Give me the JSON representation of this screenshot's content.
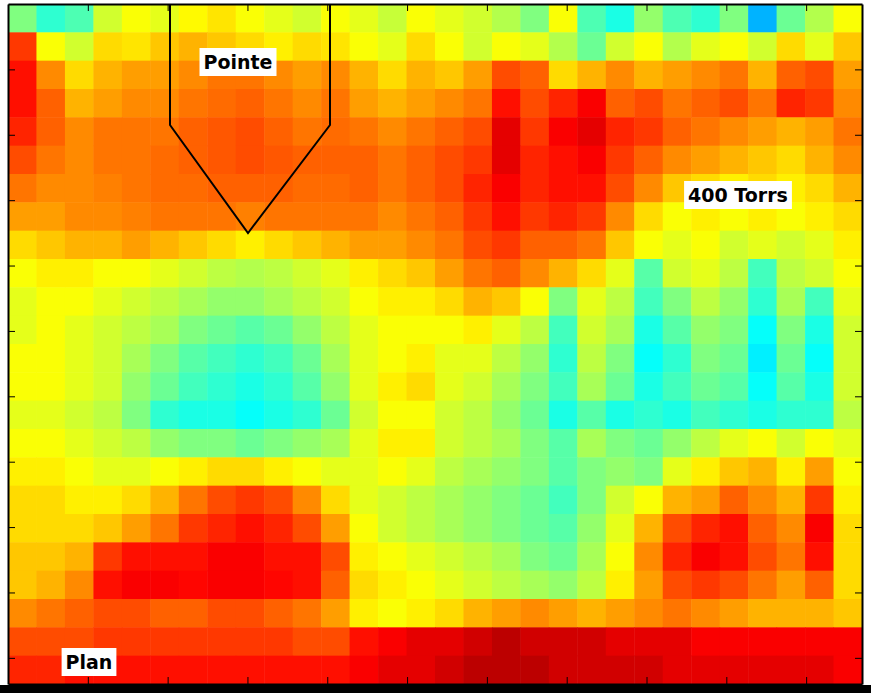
{
  "chart_data": {
    "type": "heatmap",
    "annotations": [
      "Pointe",
      "400 Torrs",
      "Plan"
    ],
    "xlim": [
      0,
      10.7
    ],
    "xticks": [
      1,
      2,
      3,
      4,
      5,
      6,
      7,
      8,
      9,
      10
    ],
    "ylim": [
      0,
      10.4
    ],
    "yticks": [
      1,
      2,
      3,
      4,
      5,
      6,
      7,
      8,
      9,
      10
    ],
    "tick_labels": false,
    "value_range": [
      0,
      1
    ],
    "cells": [
      [
        0.5,
        0.42,
        0.45,
        0.58,
        0.62,
        0.6,
        0.63,
        0.65,
        0.62,
        0.6,
        0.58,
        0.62,
        0.6,
        0.57,
        0.62,
        0.6,
        0.58,
        0.55,
        0.5,
        0.62,
        0.45,
        0.4,
        0.52,
        0.45,
        0.42,
        0.5,
        0.3,
        0.48,
        0.55,
        0.62
      ],
      [
        0.82,
        0.62,
        0.58,
        0.66,
        0.65,
        0.68,
        0.7,
        0.68,
        0.66,
        0.64,
        0.66,
        0.65,
        0.62,
        0.6,
        0.66,
        0.62,
        0.58,
        0.62,
        0.6,
        0.55,
        0.48,
        0.58,
        0.62,
        0.55,
        0.6,
        0.62,
        0.58,
        0.66,
        0.6,
        0.68
      ],
      [
        0.86,
        0.74,
        0.66,
        0.7,
        0.72,
        0.72,
        0.74,
        0.76,
        0.76,
        0.74,
        0.72,
        0.74,
        0.7,
        0.66,
        0.7,
        0.68,
        0.72,
        0.8,
        0.78,
        0.66,
        0.7,
        0.74,
        0.7,
        0.72,
        0.74,
        0.76,
        0.7,
        0.78,
        0.8,
        0.72
      ],
      [
        0.86,
        0.78,
        0.7,
        0.72,
        0.74,
        0.74,
        0.76,
        0.77,
        0.78,
        0.76,
        0.74,
        0.76,
        0.72,
        0.7,
        0.72,
        0.74,
        0.76,
        0.86,
        0.8,
        0.84,
        0.88,
        0.78,
        0.8,
        0.76,
        0.78,
        0.8,
        0.76,
        0.84,
        0.82,
        0.74
      ],
      [
        0.84,
        0.78,
        0.74,
        0.76,
        0.76,
        0.76,
        0.78,
        0.79,
        0.8,
        0.78,
        0.76,
        0.77,
        0.76,
        0.74,
        0.76,
        0.78,
        0.8,
        0.9,
        0.82,
        0.88,
        0.9,
        0.84,
        0.82,
        0.78,
        0.76,
        0.74,
        0.72,
        0.7,
        0.72,
        0.76
      ],
      [
        0.8,
        0.76,
        0.74,
        0.76,
        0.76,
        0.77,
        0.78,
        0.79,
        0.8,
        0.79,
        0.78,
        0.78,
        0.78,
        0.76,
        0.78,
        0.8,
        0.82,
        0.9,
        0.84,
        0.86,
        0.88,
        0.82,
        0.78,
        0.74,
        0.72,
        0.7,
        0.68,
        0.66,
        0.7,
        0.74
      ],
      [
        0.76,
        0.74,
        0.74,
        0.75,
        0.76,
        0.77,
        0.77,
        0.78,
        0.78,
        0.78,
        0.77,
        0.77,
        0.78,
        0.76,
        0.78,
        0.8,
        0.84,
        0.88,
        0.84,
        0.86,
        0.86,
        0.8,
        0.74,
        0.68,
        0.66,
        0.64,
        0.66,
        0.64,
        0.66,
        0.7
      ],
      [
        0.72,
        0.72,
        0.74,
        0.74,
        0.75,
        0.76,
        0.76,
        0.76,
        0.75,
        0.76,
        0.76,
        0.76,
        0.76,
        0.74,
        0.76,
        0.78,
        0.82,
        0.86,
        0.82,
        0.84,
        0.82,
        0.74,
        0.66,
        0.62,
        0.64,
        0.62,
        0.64,
        0.62,
        0.64,
        0.66
      ],
      [
        0.66,
        0.68,
        0.7,
        0.7,
        0.72,
        0.7,
        0.68,
        0.66,
        0.64,
        0.66,
        0.68,
        0.7,
        0.72,
        0.72,
        0.74,
        0.76,
        0.8,
        0.82,
        0.78,
        0.78,
        0.76,
        0.68,
        0.62,
        0.6,
        0.62,
        0.58,
        0.6,
        0.58,
        0.6,
        0.64
      ],
      [
        0.62,
        0.64,
        0.64,
        0.62,
        0.62,
        0.6,
        0.58,
        0.56,
        0.55,
        0.56,
        0.58,
        0.6,
        0.64,
        0.66,
        0.68,
        0.72,
        0.76,
        0.78,
        0.74,
        0.7,
        0.66,
        0.6,
        0.46,
        0.58,
        0.6,
        0.56,
        0.44,
        0.56,
        0.58,
        0.62
      ],
      [
        0.6,
        0.62,
        0.62,
        0.6,
        0.58,
        0.56,
        0.54,
        0.52,
        0.52,
        0.54,
        0.56,
        0.58,
        0.62,
        0.64,
        0.64,
        0.66,
        0.7,
        0.68,
        0.62,
        0.5,
        0.6,
        0.56,
        0.44,
        0.5,
        0.56,
        0.52,
        0.42,
        0.54,
        0.44,
        0.6
      ],
      [
        0.6,
        0.62,
        0.6,
        0.58,
        0.56,
        0.54,
        0.5,
        0.48,
        0.46,
        0.48,
        0.52,
        0.56,
        0.6,
        0.62,
        0.62,
        0.62,
        0.64,
        0.6,
        0.56,
        0.44,
        0.58,
        0.54,
        0.4,
        0.46,
        0.52,
        0.5,
        0.38,
        0.5,
        0.4,
        0.58
      ],
      [
        0.62,
        0.62,
        0.6,
        0.58,
        0.54,
        0.5,
        0.46,
        0.44,
        0.42,
        0.44,
        0.48,
        0.54,
        0.6,
        0.62,
        0.64,
        0.6,
        0.6,
        0.56,
        0.52,
        0.42,
        0.56,
        0.5,
        0.38,
        0.42,
        0.5,
        0.48,
        0.36,
        0.48,
        0.38,
        0.58
      ],
      [
        0.62,
        0.62,
        0.6,
        0.58,
        0.52,
        0.48,
        0.44,
        0.42,
        0.4,
        0.42,
        0.46,
        0.52,
        0.6,
        0.64,
        0.66,
        0.6,
        0.58,
        0.54,
        0.5,
        0.44,
        0.54,
        0.48,
        0.4,
        0.44,
        0.48,
        0.46,
        0.38,
        0.46,
        0.4,
        0.58
      ],
      [
        0.6,
        0.6,
        0.58,
        0.56,
        0.5,
        0.42,
        0.4,
        0.4,
        0.38,
        0.4,
        0.42,
        0.48,
        0.58,
        0.62,
        0.62,
        0.58,
        0.56,
        0.52,
        0.48,
        0.4,
        0.46,
        0.4,
        0.42,
        0.4,
        0.44,
        0.42,
        0.4,
        0.42,
        0.42,
        0.56
      ],
      [
        0.62,
        0.62,
        0.6,
        0.58,
        0.56,
        0.52,
        0.5,
        0.5,
        0.48,
        0.5,
        0.52,
        0.54,
        0.6,
        0.64,
        0.64,
        0.58,
        0.56,
        0.54,
        0.5,
        0.46,
        0.54,
        0.5,
        0.48,
        0.52,
        0.56,
        0.6,
        0.62,
        0.58,
        0.62,
        0.6
      ],
      [
        0.64,
        0.64,
        0.62,
        0.6,
        0.6,
        0.62,
        0.64,
        0.66,
        0.66,
        0.64,
        0.62,
        0.6,
        0.6,
        0.62,
        0.6,
        0.56,
        0.54,
        0.52,
        0.5,
        0.46,
        0.5,
        0.52,
        0.5,
        0.6,
        0.64,
        0.68,
        0.7,
        0.64,
        0.72,
        0.62
      ],
      [
        0.66,
        0.66,
        0.64,
        0.64,
        0.66,
        0.7,
        0.76,
        0.8,
        0.82,
        0.8,
        0.74,
        0.66,
        0.6,
        0.58,
        0.56,
        0.54,
        0.52,
        0.5,
        0.48,
        0.44,
        0.5,
        0.58,
        0.62,
        0.7,
        0.72,
        0.78,
        0.74,
        0.7,
        0.82,
        0.64
      ],
      [
        0.66,
        0.66,
        0.66,
        0.68,
        0.72,
        0.76,
        0.82,
        0.84,
        0.86,
        0.84,
        0.8,
        0.72,
        0.62,
        0.58,
        0.56,
        0.54,
        0.52,
        0.5,
        0.48,
        0.46,
        0.52,
        0.6,
        0.7,
        0.8,
        0.84,
        0.86,
        0.78,
        0.74,
        0.88,
        0.66
      ],
      [
        0.68,
        0.68,
        0.7,
        0.82,
        0.86,
        0.86,
        0.86,
        0.88,
        0.88,
        0.86,
        0.86,
        0.8,
        0.64,
        0.62,
        0.6,
        0.58,
        0.56,
        0.54,
        0.5,
        0.48,
        0.54,
        0.62,
        0.74,
        0.84,
        0.88,
        0.86,
        0.8,
        0.76,
        0.86,
        0.66
      ],
      [
        0.68,
        0.7,
        0.74,
        0.86,
        0.88,
        0.88,
        0.87,
        0.88,
        0.88,
        0.87,
        0.86,
        0.78,
        0.66,
        0.64,
        0.62,
        0.6,
        0.58,
        0.56,
        0.54,
        0.52,
        0.56,
        0.64,
        0.72,
        0.8,
        0.82,
        0.8,
        0.76,
        0.72,
        0.78,
        0.66
      ],
      [
        0.74,
        0.76,
        0.78,
        0.8,
        0.8,
        0.78,
        0.78,
        0.8,
        0.8,
        0.78,
        0.76,
        0.72,
        0.64,
        0.62,
        0.64,
        0.66,
        0.7,
        0.72,
        0.74,
        0.72,
        0.7,
        0.72,
        0.74,
        0.76,
        0.74,
        0.72,
        0.7,
        0.7,
        0.7,
        0.68
      ],
      [
        0.8,
        0.8,
        0.8,
        0.82,
        0.82,
        0.82,
        0.82,
        0.82,
        0.82,
        0.82,
        0.8,
        0.8,
        0.86,
        0.88,
        0.9,
        0.9,
        0.92,
        0.94,
        0.92,
        0.92,
        0.92,
        0.9,
        0.9,
        0.9,
        0.88,
        0.88,
        0.88,
        0.88,
        0.88,
        0.88
      ],
      [
        0.84,
        0.84,
        0.86,
        0.86,
        0.86,
        0.86,
        0.86,
        0.86,
        0.86,
        0.86,
        0.86,
        0.86,
        0.88,
        0.9,
        0.9,
        0.92,
        0.94,
        0.94,
        0.94,
        0.92,
        0.92,
        0.92,
        0.92,
        0.9,
        0.9,
        0.9,
        0.9,
        0.9,
        0.9,
        0.88
      ]
    ]
  }
}
